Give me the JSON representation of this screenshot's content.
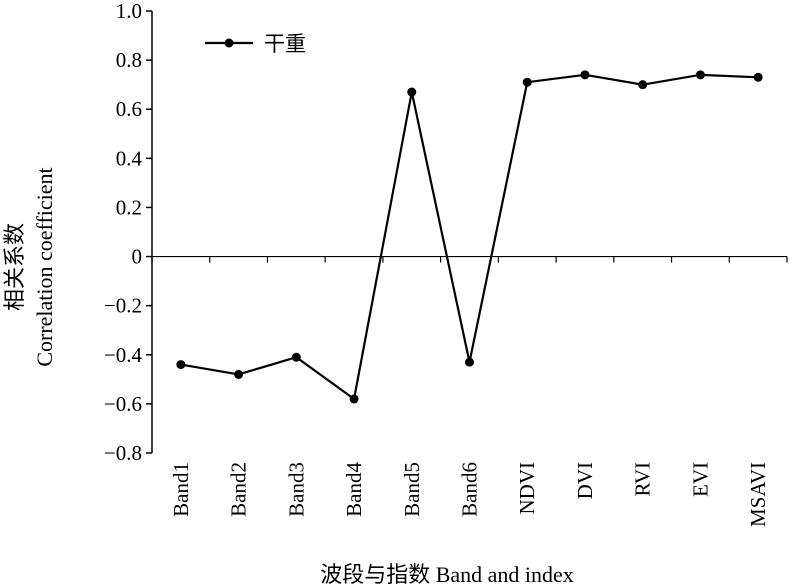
{
  "chart_data": {
    "type": "line",
    "categories": [
      "Band1",
      "Band2",
      "Band3",
      "Band4",
      "Band5",
      "Band6",
      "NDVI",
      "DVI",
      "RVI",
      "EVI",
      "MSAVI"
    ],
    "series": [
      {
        "name": "干重",
        "values": [
          -0.44,
          -0.48,
          -0.41,
          -0.58,
          0.67,
          -0.43,
          0.71,
          0.74,
          0.7,
          0.74,
          0.73
        ]
      }
    ],
    "xlabel": "波段与指数 Band and index",
    "ylabel_line1": "相关系数",
    "ylabel_line2": "Correlation coefficient",
    "ylim": [
      -0.8,
      1.0
    ],
    "yticks": [
      "1.0",
      "0.8",
      "0.6",
      "0.4",
      "0.2",
      "0",
      "−0.2",
      "−0.4",
      "−0.6",
      "−0.8"
    ],
    "ytick_values": [
      1.0,
      0.8,
      0.6,
      0.4,
      0.2,
      0,
      -0.2,
      -0.4,
      -0.6,
      -0.8
    ],
    "grid": false,
    "legend": "top-left",
    "line_color": "#000000"
  }
}
